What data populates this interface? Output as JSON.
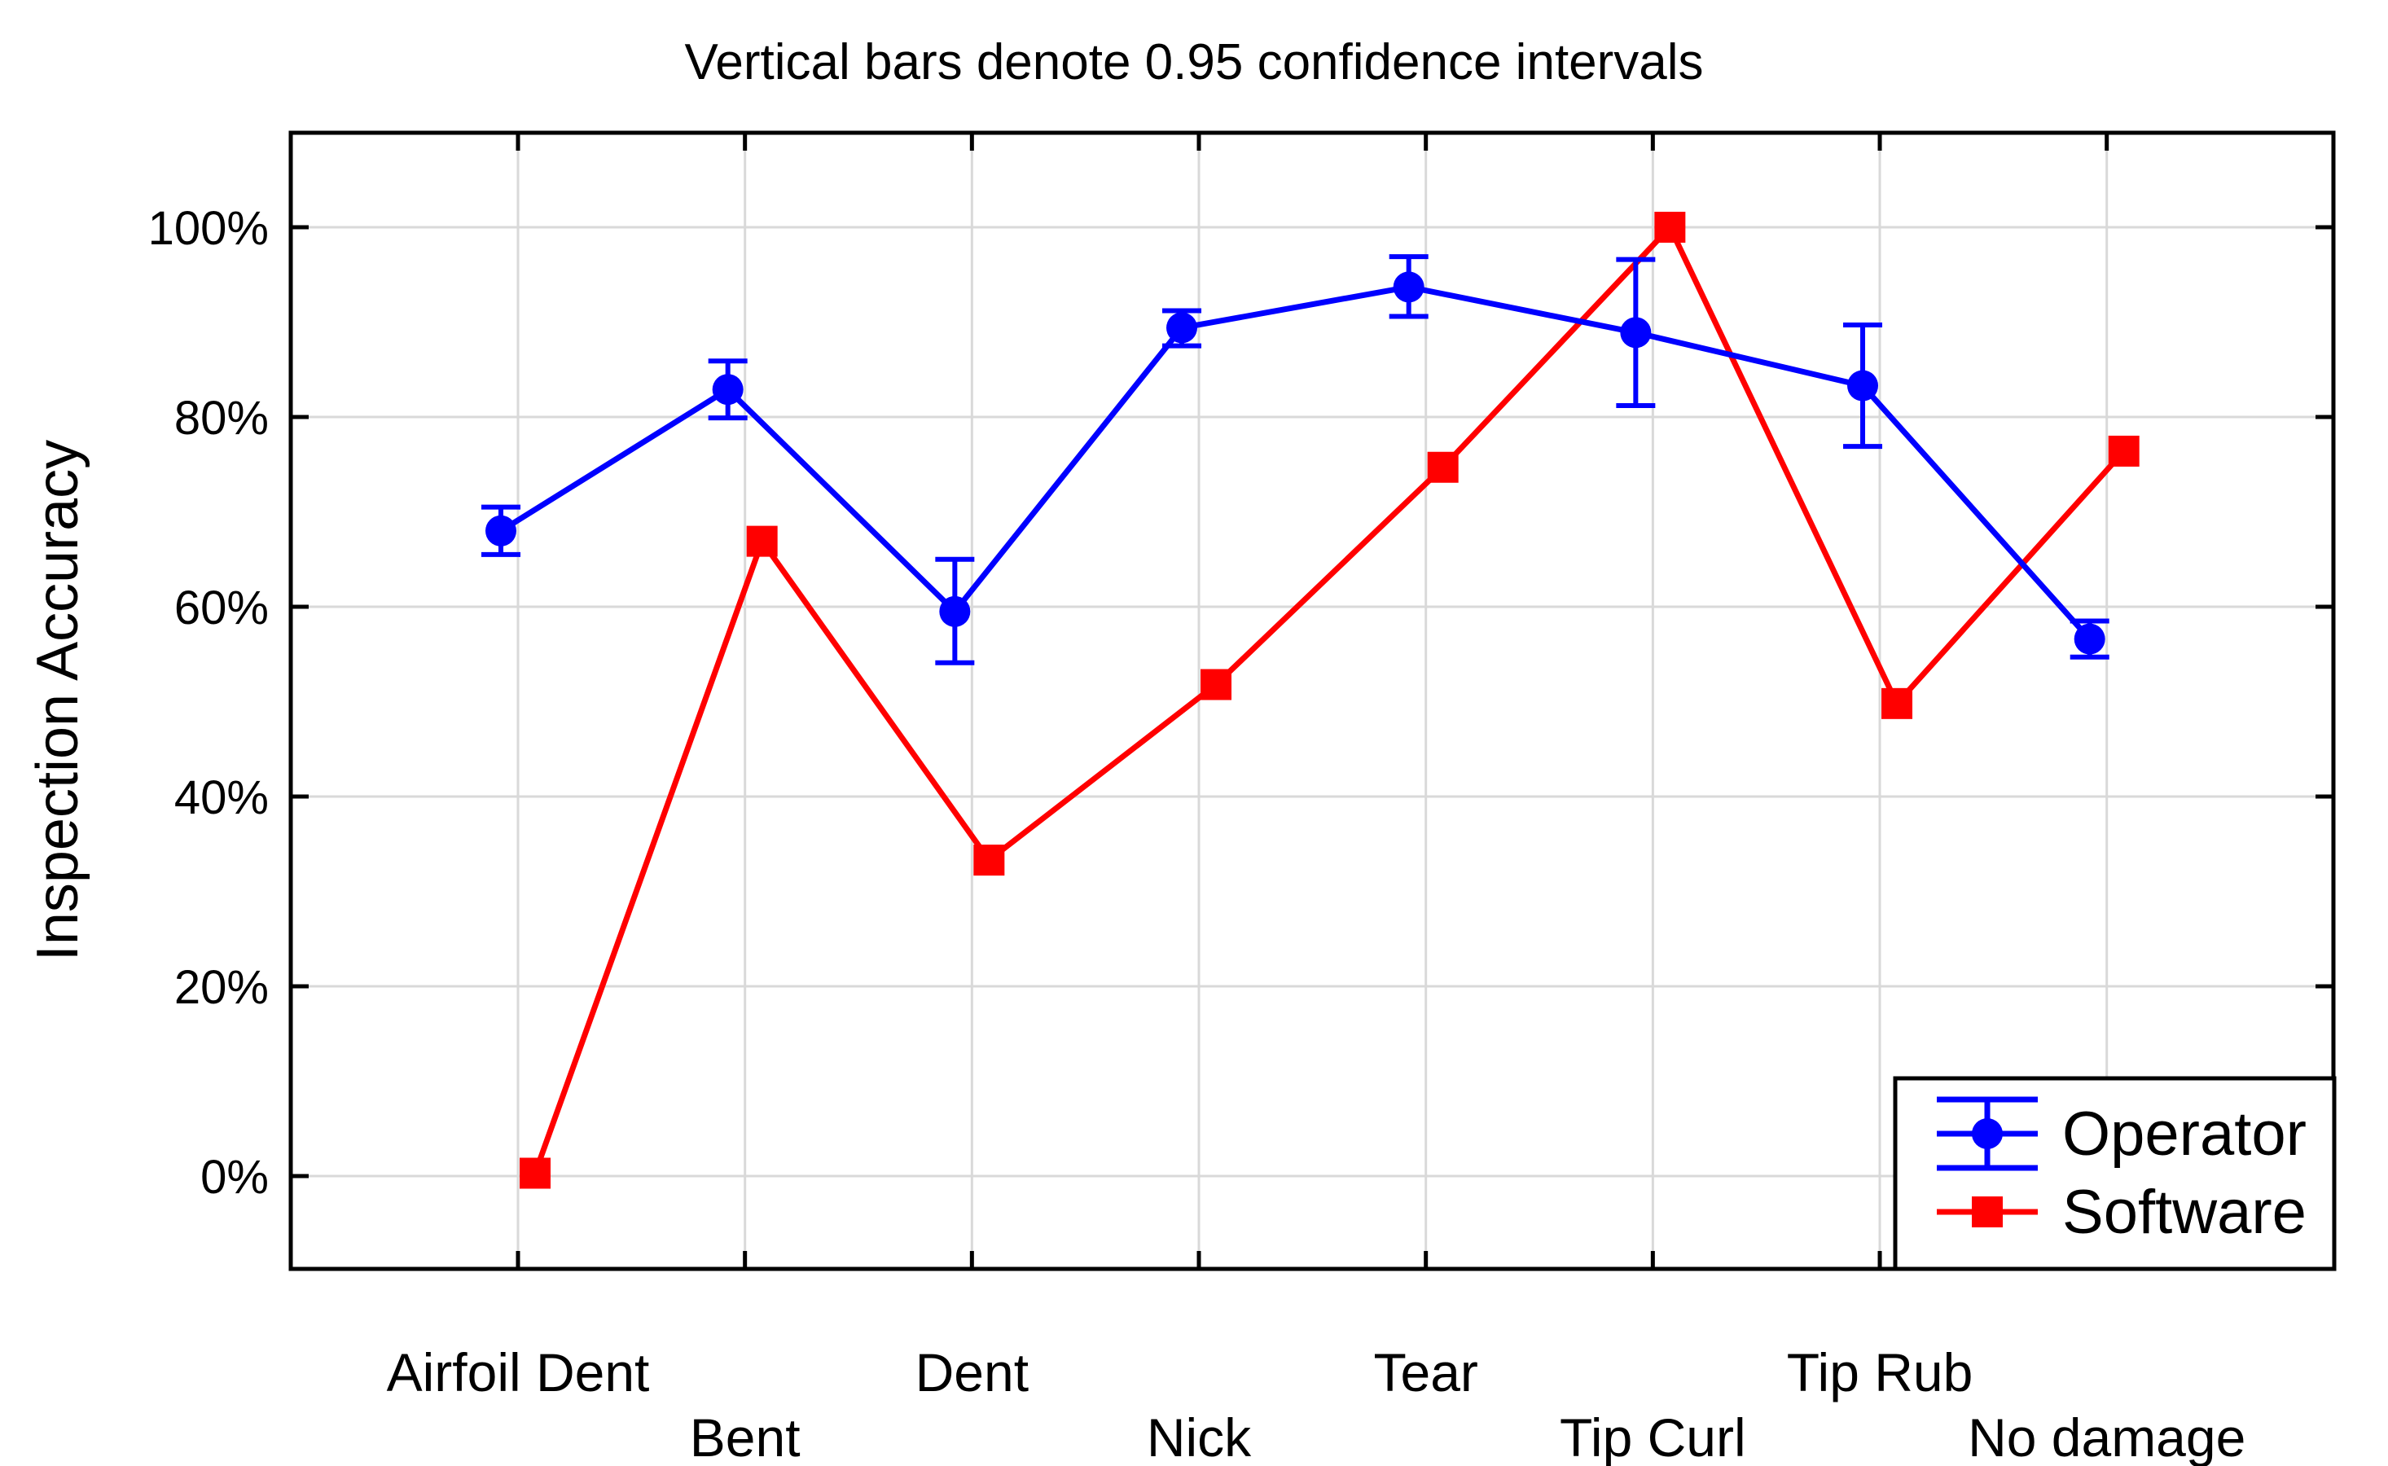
{
  "chart_data": {
    "type": "line",
    "title": "Vertical bars denote 0.95 confidence intervals",
    "ylabel": "Inspection Accuracy",
    "xlabel": "",
    "categories": [
      "Airfoil Dent",
      "Bent",
      "Dent",
      "Nick",
      "Tear",
      "Tip Curl",
      "Tip Rub",
      "No damage"
    ],
    "ytick_labels": [
      "0%",
      "20%",
      "40%",
      "60%",
      "80%",
      "100%"
    ],
    "ytick_values": [
      0,
      20,
      40,
      60,
      80,
      100
    ],
    "ylim_percent": [
      -10,
      110
    ],
    "grid": true,
    "error_bar_note": "0.95 confidence intervals on Operator series",
    "legend_position": "bottom-right-inside",
    "series": [
      {
        "name": "Operator",
        "color": "#0000ff",
        "marker": "circle",
        "values": [
          68.0,
          82.9,
          59.5,
          89.4,
          93.7,
          88.9,
          83.3,
          56.6
        ],
        "ci_low": [
          65.5,
          79.9,
          54.1,
          87.5,
          90.6,
          81.2,
          76.9,
          54.7
        ],
        "ci_high": [
          70.5,
          85.9,
          65.0,
          91.2,
          96.9,
          96.6,
          89.7,
          58.5
        ]
      },
      {
        "name": "Software",
        "color": "#ff0000",
        "marker": "square",
        "values": [
          0.3,
          66.9,
          33.3,
          51.8,
          74.7,
          100.0,
          49.8,
          76.4
        ]
      }
    ]
  },
  "colors": {
    "background": "#ffffff",
    "gridline": "#d9d9d9",
    "axis": "#000000",
    "text": "#000000",
    "operator": "#0000ff",
    "software": "#ff0000"
  }
}
